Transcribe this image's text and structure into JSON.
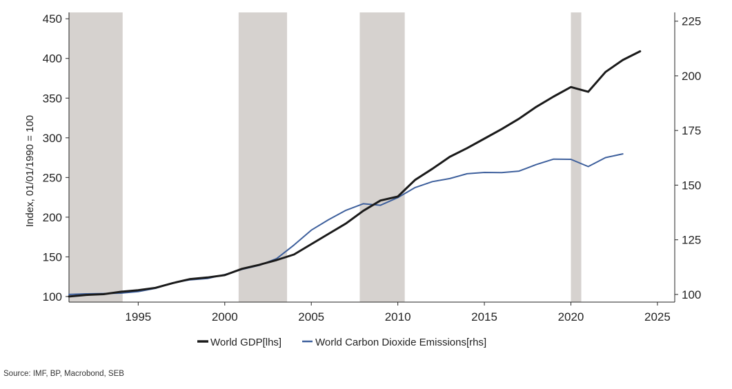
{
  "chart_data": {
    "type": "line",
    "title": "",
    "xlabel": "",
    "ylabel_left": "Index, 01/01/1990 = 100",
    "ylabel_right": "",
    "xlim": [
      1991,
      2026
    ],
    "ylim_left": [
      93,
      458
    ],
    "ylim_right": [
      96.5,
      229
    ],
    "x_ticks": [
      1995,
      2000,
      2005,
      2010,
      2015,
      2020,
      2025
    ],
    "x_tick_labels": [
      "1995",
      "2000",
      "2005",
      "2010",
      "2015",
      "2020",
      "2025"
    ],
    "y_left_ticks": [
      100,
      150,
      200,
      250,
      300,
      350,
      400,
      450
    ],
    "y_left_tick_labels": [
      "100",
      "150",
      "200",
      "250",
      "300",
      "350",
      "400",
      "450"
    ],
    "y_right_ticks": [
      100,
      125,
      150,
      175,
      200,
      225
    ],
    "y_right_tick_labels": [
      "100",
      "125",
      "150",
      "175",
      "200",
      "225"
    ],
    "grid": false,
    "legend_position": "bottom",
    "shaded_periods": [
      {
        "start": 1991.0,
        "end": 1994.1
      },
      {
        "start": 2000.8,
        "end": 2003.6
      },
      {
        "start": 2007.8,
        "end": 2010.4
      },
      {
        "start": 2020.0,
        "end": 2020.6
      }
    ],
    "series": [
      {
        "name": "World GDP[lhs]",
        "axis": "left",
        "color": "#1a1a1a",
        "x": [
          1991,
          1992,
          1993,
          1994,
          1995,
          1996,
          1997,
          1998,
          1999,
          2000,
          2001,
          2002,
          2003,
          2004,
          2005,
          2006,
          2007,
          2008,
          2009,
          2010,
          2011,
          2012,
          2013,
          2014,
          2015,
          2016,
          2017,
          2018,
          2019,
          2020,
          2021,
          2022,
          2023,
          2024
        ],
        "values": [
          100,
          102,
          103,
          106,
          108,
          111,
          117,
          122,
          124,
          127,
          135,
          140,
          146,
          153,
          166,
          179,
          192,
          208,
          221,
          226,
          247,
          261,
          276,
          287,
          299,
          311,
          324,
          339,
          352,
          364,
          358,
          383,
          398,
          409
        ]
      },
      {
        "name": "World Carbon Dioxide Emissions[rhs]",
        "axis": "right",
        "color": "#3d5f9c",
        "x": [
          1991,
          1992,
          1993,
          1994,
          1995,
          1996,
          1997,
          1998,
          1999,
          2000,
          2001,
          2002,
          2003,
          2004,
          2005,
          2006,
          2007,
          2008,
          2009,
          2010,
          2011,
          2012,
          2013,
          2014,
          2015,
          2016,
          2017,
          2018,
          2019,
          2020,
          2021,
          2022,
          2023
        ],
        "values": [
          100,
          100.3,
          100.4,
          100.6,
          101.3,
          102.8,
          105.3,
          106.7,
          107.3,
          109.1,
          111.5,
          113.3,
          116.4,
          122.6,
          129.4,
          134.2,
          138.5,
          141.5,
          140.8,
          144.3,
          148.9,
          151.6,
          153.0,
          155.2,
          155.8,
          155.7,
          156.4,
          159.4,
          161.9,
          161.8,
          158.5,
          162.6,
          164.3
        ]
      }
    ]
  },
  "source": "Source: IMF, BP, Macrobond, SEB"
}
